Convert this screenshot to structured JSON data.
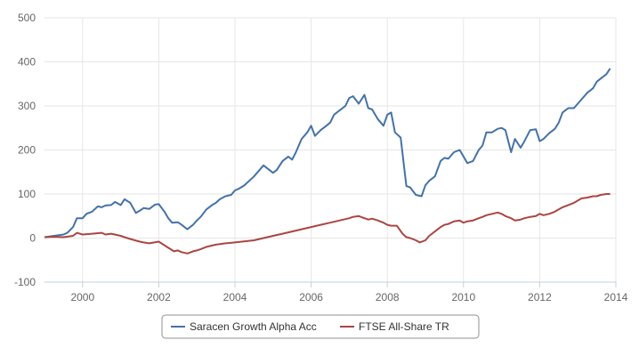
{
  "chart_data": {
    "type": "line",
    "title": "",
    "xlabel": "",
    "ylabel": "",
    "xlim": [
      1999.0,
      2014.0
    ],
    "ylim": [
      -100,
      500
    ],
    "x_ticks": [
      2000,
      2002,
      2004,
      2006,
      2008,
      2010,
      2012,
      2014
    ],
    "y_ticks": [
      -100,
      0,
      100,
      200,
      300,
      400,
      500
    ],
    "grid": true,
    "legend_position": "bottom-center",
    "series": [
      {
        "name": "Saracen Growth Alpha Acc",
        "color": "#4572a7",
        "x": [
          1999.0,
          1999.25,
          1999.5,
          1999.6,
          1999.75,
          1999.85,
          2000.0,
          2000.1,
          2000.25,
          2000.4,
          2000.5,
          2000.6,
          2000.75,
          2000.85,
          2001.0,
          2001.1,
          2001.25,
          2001.4,
          2001.5,
          2001.6,
          2001.75,
          2001.9,
          2002.0,
          2002.15,
          2002.25,
          2002.35,
          2002.5,
          2002.6,
          2002.75,
          2002.9,
          2003.0,
          2003.1,
          2003.25,
          2003.4,
          2003.5,
          2003.6,
          2003.75,
          2003.9,
          2004.0,
          2004.1,
          2004.25,
          2004.5,
          2004.75,
          2005.0,
          2005.1,
          2005.25,
          2005.4,
          2005.5,
          2005.6,
          2005.75,
          2005.9,
          2006.0,
          2006.1,
          2006.25,
          2006.4,
          2006.5,
          2006.6,
          2006.75,
          2006.9,
          2007.0,
          2007.1,
          2007.25,
          2007.4,
          2007.5,
          2007.6,
          2007.75,
          2007.9,
          2008.0,
          2008.1,
          2008.2,
          2008.35,
          2008.5,
          2008.6,
          2008.75,
          2008.9,
          2009.0,
          2009.1,
          2009.25,
          2009.4,
          2009.5,
          2009.6,
          2009.75,
          2009.9,
          2010.0,
          2010.1,
          2010.25,
          2010.4,
          2010.5,
          2010.6,
          2010.75,
          2010.9,
          2011.0,
          2011.1,
          2011.25,
          2011.35,
          2011.5,
          2011.6,
          2011.75,
          2011.9,
          2012.0,
          2012.1,
          2012.25,
          2012.4,
          2012.5,
          2012.6,
          2012.75,
          2012.9,
          2013.0,
          2013.1,
          2013.25,
          2013.4,
          2013.5,
          2013.6,
          2013.75,
          2013.85
        ],
        "y": [
          2,
          5,
          8,
          12,
          25,
          45,
          45,
          55,
          60,
          72,
          70,
          74,
          75,
          82,
          75,
          88,
          80,
          57,
          62,
          68,
          66,
          76,
          77,
          60,
          45,
          35,
          36,
          30,
          20,
          30,
          40,
          48,
          65,
          75,
          80,
          88,
          95,
          98,
          108,
          112,
          120,
          140,
          165,
          148,
          155,
          175,
          185,
          178,
          195,
          225,
          240,
          255,
          232,
          245,
          255,
          262,
          280,
          290,
          300,
          318,
          322,
          305,
          325,
          295,
          292,
          270,
          255,
          280,
          285,
          240,
          228,
          118,
          115,
          98,
          95,
          120,
          130,
          140,
          175,
          182,
          180,
          195,
          200,
          185,
          170,
          175,
          200,
          210,
          240,
          240,
          248,
          250,
          245,
          195,
          225,
          205,
          220,
          245,
          247,
          220,
          225,
          238,
          248,
          262,
          285,
          295,
          295,
          305,
          315,
          330,
          340,
          355,
          362,
          372,
          385
        ]
      },
      {
        "name": "FTSE All-Share TR",
        "color": "#aa4643",
        "x": [
          1999.0,
          1999.25,
          1999.5,
          1999.75,
          1999.85,
          2000.0,
          2000.25,
          2000.5,
          2000.6,
          2000.75,
          2001.0,
          2001.1,
          2001.25,
          2001.5,
          2001.6,
          2001.75,
          2002.0,
          2002.25,
          2002.4,
          2002.5,
          2002.6,
          2002.75,
          2002.9,
          2003.0,
          2003.1,
          2003.25,
          2003.5,
          2003.75,
          2004.0,
          2004.5,
          2004.75,
          2005.0,
          2005.25,
          2005.5,
          2005.75,
          2006.0,
          2006.25,
          2006.5,
          2006.75,
          2007.0,
          2007.1,
          2007.25,
          2007.4,
          2007.5,
          2007.6,
          2007.75,
          2007.9,
          2008.0,
          2008.1,
          2008.25,
          2008.4,
          2008.5,
          2008.6,
          2008.75,
          2008.85,
          2009.0,
          2009.1,
          2009.25,
          2009.4,
          2009.5,
          2009.6,
          2009.75,
          2009.9,
          2010.0,
          2010.1,
          2010.25,
          2010.4,
          2010.5,
          2010.6,
          2010.75,
          2010.9,
          2011.0,
          2011.1,
          2011.25,
          2011.35,
          2011.5,
          2011.6,
          2011.75,
          2011.9,
          2012.0,
          2012.1,
          2012.25,
          2012.4,
          2012.5,
          2012.6,
          2012.75,
          2012.9,
          2013.0,
          2013.1,
          2013.25,
          2013.4,
          2013.5,
          2013.6,
          2013.75,
          2013.85
        ],
        "y": [
          2,
          3,
          2,
          5,
          12,
          8,
          10,
          12,
          8,
          10,
          5,
          2,
          -2,
          -8,
          -10,
          -12,
          -8,
          -22,
          -30,
          -28,
          -32,
          -35,
          -30,
          -28,
          -25,
          -20,
          -15,
          -12,
          -10,
          -5,
          0,
          5,
          10,
          15,
          20,
          25,
          30,
          35,
          40,
          45,
          48,
          50,
          45,
          42,
          44,
          40,
          35,
          30,
          28,
          28,
          10,
          2,
          0,
          -5,
          -10,
          -5,
          5,
          15,
          25,
          30,
          32,
          38,
          40,
          35,
          38,
          40,
          45,
          48,
          52,
          55,
          58,
          55,
          50,
          45,
          40,
          42,
          45,
          48,
          50,
          55,
          52,
          55,
          60,
          65,
          70,
          75,
          80,
          85,
          90,
          92,
          95,
          95,
          98,
          100,
          100
        ]
      }
    ]
  }
}
